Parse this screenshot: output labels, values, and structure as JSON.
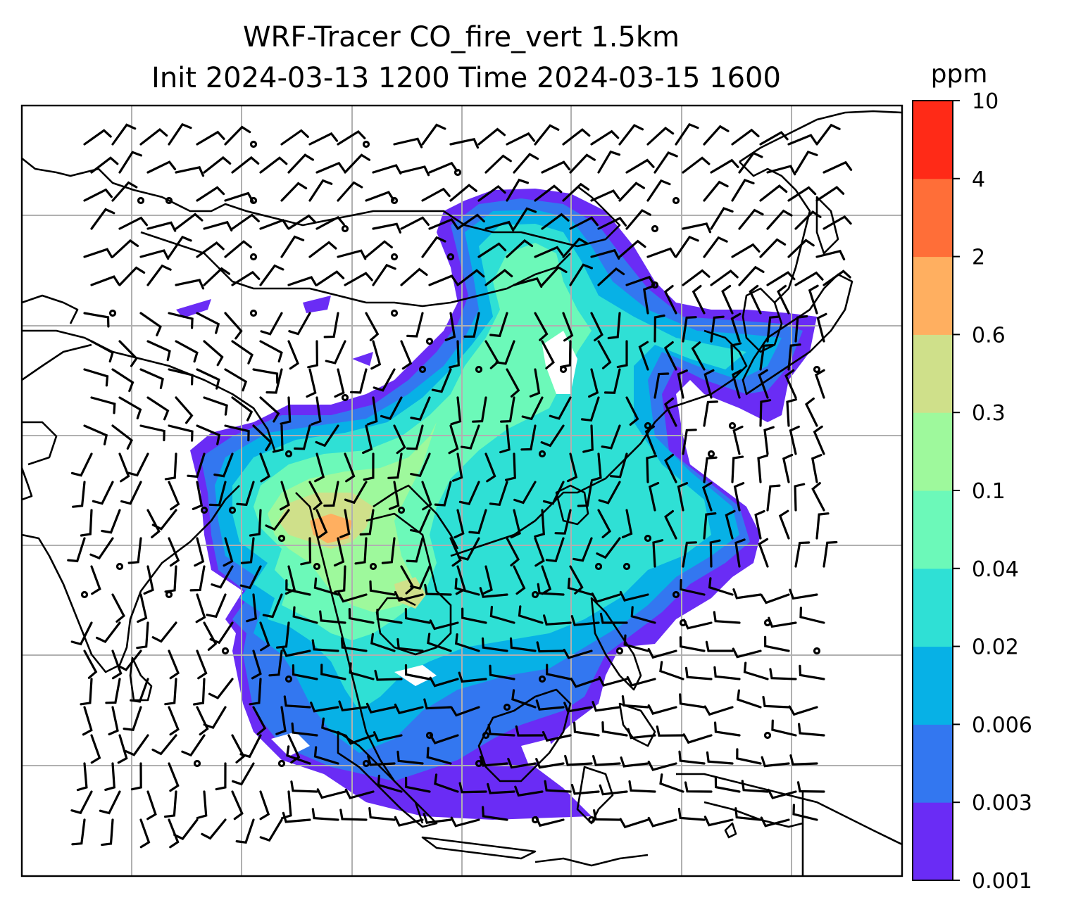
{
  "title": {
    "line1": "WRF-Tracer CO_fire_vert 1.5km",
    "line2": "Init 2024-03-13 1200 Time 2024-03-15 1600"
  },
  "colorbar": {
    "unit": "ppm",
    "levels": [
      "0.001",
      "0.003",
      "0.006",
      "0.02",
      "0.04",
      "0.1",
      "0.3",
      "0.6",
      "2",
      "4",
      "10"
    ],
    "colors": [
      "#6a2cf5",
      "#3377f0",
      "#07b1e6",
      "#2fe0d5",
      "#6cf9b9",
      "#9ef99c",
      "#cfe08a",
      "#ffaf60",
      "#ff6e38",
      "#ff2a17"
    ]
  },
  "map": {
    "grid": true,
    "gridline_color": "#b0b0b0",
    "coastline_color": "#000000",
    "wind_barbs": true
  }
}
